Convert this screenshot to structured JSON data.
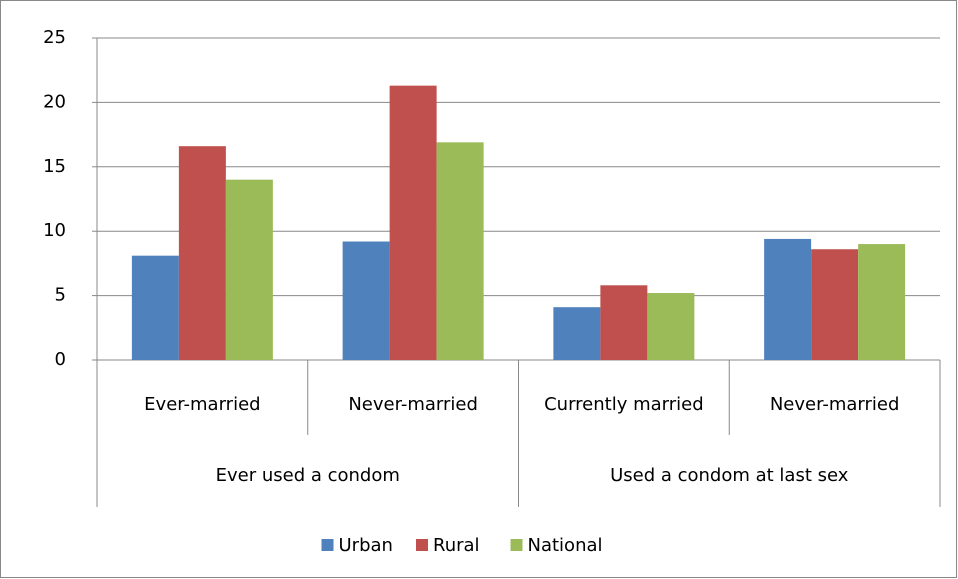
{
  "chart_data": {
    "type": "bar",
    "groups": [
      {
        "name": "Ever used a condom",
        "categories": [
          "Ever-married",
          "Never-married"
        ]
      },
      {
        "name": "Used a condom at last sex",
        "categories": [
          "Currently married",
          "Never-married"
        ]
      }
    ],
    "series": [
      {
        "name": "Urban",
        "color": "#4f81bd",
        "values": [
          8.1,
          9.2,
          4.1,
          9.4
        ]
      },
      {
        "name": "Rural",
        "color": "#c0504d",
        "values": [
          16.6,
          21.3,
          5.8,
          8.6
        ]
      },
      {
        "name": "National",
        "color": "#9bbb59",
        "values": [
          14.0,
          16.9,
          5.2,
          9.0
        ]
      }
    ],
    "ylim": [
      0,
      25
    ],
    "yticks": [
      0,
      5,
      10,
      15,
      20,
      25
    ],
    "grid": true,
    "legend": "bottom"
  }
}
